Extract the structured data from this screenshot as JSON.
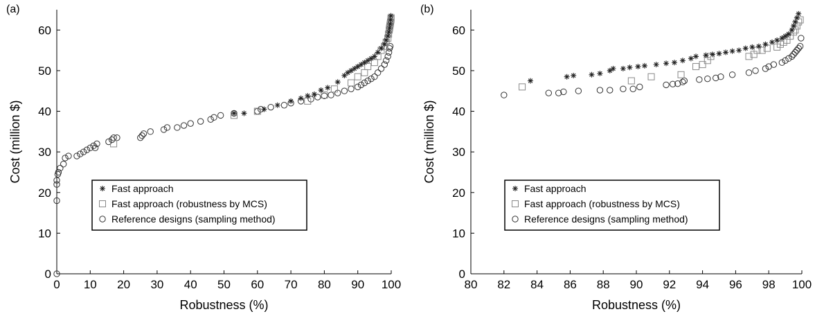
{
  "chart_data": [
    {
      "type": "scatter",
      "panel_label": "(a)",
      "xlabel": "Robustness (%)",
      "ylabel": "Cost (million $)",
      "xlim": [
        0,
        100
      ],
      "ylim": [
        0,
        65
      ],
      "xticks": [
        0,
        10,
        20,
        30,
        40,
        50,
        60,
        70,
        80,
        90,
        100
      ],
      "yticks": [
        0,
        10,
        20,
        30,
        40,
        50,
        60
      ],
      "legend_position": "lower-center-left",
      "series": [
        {
          "name": "Fast approach",
          "marker": "asterisk",
          "color": "#222222",
          "points": [
            [
              53,
              39.5
            ],
            [
              56,
              39.5
            ],
            [
              62,
              40.5
            ],
            [
              66,
              41.5
            ],
            [
              70,
              42.5
            ],
            [
              73,
              43.2
            ],
            [
              75,
              43.8
            ],
            [
              77,
              44.2
            ],
            [
              79,
              45.2
            ],
            [
              81,
              45.8
            ],
            [
              84,
              47.2
            ],
            [
              86,
              48.8
            ],
            [
              87,
              49.5
            ],
            [
              88,
              50
            ],
            [
              89,
              50.5
            ],
            [
              90,
              51
            ],
            [
              91,
              51.5
            ],
            [
              92,
              52
            ],
            [
              93,
              52.5
            ],
            [
              94,
              53
            ],
            [
              95,
              53.5
            ],
            [
              96,
              54.5
            ],
            [
              97,
              55.5
            ],
            [
              98,
              56.5
            ],
            [
              98.5,
              57.5
            ],
            [
              99,
              58.5
            ],
            [
              99.3,
              59.5
            ],
            [
              99.5,
              60.5
            ],
            [
              99.7,
              61.5
            ],
            [
              99.8,
              62.5
            ],
            [
              99.9,
              63.5
            ]
          ]
        },
        {
          "name": "Fast approach (robustness by MCS)",
          "marker": "square",
          "color": "#888888",
          "points": [
            [
              17,
              32
            ],
            [
              53,
              39
            ],
            [
              60,
              40
            ],
            [
              75,
              42.5
            ],
            [
              80,
              44
            ],
            [
              83,
              45.5
            ],
            [
              88,
              47
            ],
            [
              90,
              48.5
            ],
            [
              92,
              49.5
            ],
            [
              93,
              51
            ],
            [
              95,
              52
            ],
            [
              96,
              53.5
            ],
            [
              97,
              55
            ],
            [
              98,
              56
            ],
            [
              98.5,
              57
            ],
            [
              99,
              58
            ],
            [
              99.2,
              59
            ],
            [
              99.4,
              60
            ],
            [
              99.5,
              60.5
            ],
            [
              99.6,
              61
            ],
            [
              99.7,
              61.5
            ],
            [
              99.8,
              62
            ],
            [
              99.9,
              62.5
            ],
            [
              99.95,
              63
            ]
          ]
        },
        {
          "name": "Reference designs (sampling method)",
          "marker": "circle",
          "color": "#333333",
          "points": [
            [
              0,
              0
            ],
            [
              0,
              18
            ],
            [
              0,
              22
            ],
            [
              0,
              23
            ],
            [
              0.3,
              24.5
            ],
            [
              0.5,
              25
            ],
            [
              1,
              26
            ],
            [
              2,
              27
            ],
            [
              2.5,
              28.5
            ],
            [
              3.5,
              29
            ],
            [
              6,
              29
            ],
            [
              7,
              29.5
            ],
            [
              8,
              30
            ],
            [
              9,
              30.5
            ],
            [
              10,
              31
            ],
            [
              11,
              31.5
            ],
            [
              11.5,
              31
            ],
            [
              12,
              32
            ],
            [
              15.5,
              32.5
            ],
            [
              16.5,
              33
            ],
            [
              17,
              33.5
            ],
            [
              18,
              33.5
            ],
            [
              25,
              33.5
            ],
            [
              25.5,
              34
            ],
            [
              26,
              34.5
            ],
            [
              28,
              35
            ],
            [
              32,
              35.5
            ],
            [
              33,
              36
            ],
            [
              36,
              36
            ],
            [
              38,
              36.5
            ],
            [
              40,
              37
            ],
            [
              43,
              37.5
            ],
            [
              46,
              38
            ],
            [
              47,
              38.5
            ],
            [
              49,
              39
            ],
            [
              53,
              39.5
            ],
            [
              60,
              40
            ],
            [
              61,
              40.5
            ],
            [
              64,
              41
            ],
            [
              68,
              41.5
            ],
            [
              70,
              42
            ],
            [
              73,
              42.5
            ],
            [
              76,
              43
            ],
            [
              78,
              43.5
            ],
            [
              80,
              43.8
            ],
            [
              82,
              44
            ],
            [
              84,
              44.5
            ],
            [
              86,
              45
            ],
            [
              88,
              45.5
            ],
            [
              90,
              46
            ],
            [
              91,
              46.5
            ],
            [
              92,
              47
            ],
            [
              93,
              47.5
            ],
            [
              94,
              48
            ],
            [
              95,
              48.5
            ],
            [
              96,
              49.5
            ],
            [
              97,
              50.5
            ],
            [
              98,
              51.5
            ],
            [
              98.5,
              52.5
            ],
            [
              99,
              53.5
            ],
            [
              99.3,
              54.5
            ],
            [
              99.5,
              55.5
            ],
            [
              99.7,
              56
            ]
          ]
        }
      ]
    },
    {
      "type": "scatter",
      "panel_label": "(b)",
      "xlabel": "Robustness (%)",
      "ylabel": "Cost (million $)",
      "xlim": [
        80,
        100
      ],
      "ylim": [
        0,
        65
      ],
      "xticks": [
        80,
        82,
        84,
        86,
        88,
        90,
        92,
        94,
        96,
        98,
        100
      ],
      "yticks": [
        0,
        10,
        20,
        30,
        40,
        50,
        60
      ],
      "legend_position": "lower-center",
      "series": [
        {
          "name": "Fast approach",
          "marker": "asterisk",
          "color": "#222222",
          "points": [
            [
              83.6,
              47.5
            ],
            [
              85.8,
              48.5
            ],
            [
              86.2,
              48.8
            ],
            [
              87.3,
              49
            ],
            [
              87.8,
              49.3
            ],
            [
              88.4,
              50
            ],
            [
              88.6,
              50.5
            ],
            [
              89.2,
              50.5
            ],
            [
              89.6,
              50.8
            ],
            [
              90.1,
              51
            ],
            [
              90.5,
              51.2
            ],
            [
              91.2,
              51.5
            ],
            [
              91.8,
              51.8
            ],
            [
              92.3,
              52
            ],
            [
              92.8,
              52.5
            ],
            [
              93.3,
              53
            ],
            [
              93.6,
              53.5
            ],
            [
              94.2,
              53.8
            ],
            [
              94.6,
              54
            ],
            [
              95,
              54.2
            ],
            [
              95.4,
              54.5
            ],
            [
              95.8,
              54.8
            ],
            [
              96.2,
              55
            ],
            [
              96.6,
              55.5
            ],
            [
              97,
              55.8
            ],
            [
              97.4,
              56
            ],
            [
              97.8,
              56.5
            ],
            [
              98.2,
              57
            ],
            [
              98.5,
              57.5
            ],
            [
              98.8,
              58
            ],
            [
              99,
              58.5
            ],
            [
              99.2,
              59
            ],
            [
              99.4,
              60
            ],
            [
              99.5,
              61
            ],
            [
              99.6,
              62
            ],
            [
              99.7,
              63
            ],
            [
              99.8,
              64
            ]
          ]
        },
        {
          "name": "Fast approach (robustness by MCS)",
          "marker": "square",
          "color": "#888888",
          "points": [
            [
              83.1,
              46
            ],
            [
              89.7,
              47.5
            ],
            [
              90.9,
              48.5
            ],
            [
              92.7,
              49
            ],
            [
              93.6,
              51
            ],
            [
              94,
              51.5
            ],
            [
              94.3,
              52.5
            ],
            [
              94.5,
              53.5
            ],
            [
              96.8,
              53.5
            ],
            [
              97.1,
              54
            ],
            [
              97.3,
              55
            ],
            [
              97.6,
              55
            ],
            [
              97.9,
              55.5
            ],
            [
              98.5,
              55.8
            ],
            [
              98.7,
              56.5
            ],
            [
              98.9,
              57
            ],
            [
              99.1,
              57.5
            ],
            [
              99.3,
              58.5
            ],
            [
              99.5,
              59.5
            ],
            [
              99.6,
              60
            ],
            [
              99.7,
              61
            ],
            [
              99.8,
              62
            ],
            [
              99.9,
              62.5
            ]
          ]
        },
        {
          "name": "Reference designs (sampling method)",
          "marker": "circle",
          "color": "#333333",
          "points": [
            [
              82,
              44
            ],
            [
              84.7,
              44.5
            ],
            [
              85.3,
              44.5
            ],
            [
              85.6,
              44.8
            ],
            [
              86.5,
              45
            ],
            [
              87.8,
              45.2
            ],
            [
              88.4,
              45.2
            ],
            [
              89.2,
              45.5
            ],
            [
              89.8,
              45.5
            ],
            [
              90.2,
              46
            ],
            [
              91.8,
              46.5
            ],
            [
              92.2,
              46.7
            ],
            [
              92.5,
              46.8
            ],
            [
              92.8,
              47.2
            ],
            [
              92.9,
              47.5
            ],
            [
              93.8,
              47.8
            ],
            [
              94.3,
              48
            ],
            [
              94.8,
              48.2
            ],
            [
              95.1,
              48.5
            ],
            [
              95.8,
              49
            ],
            [
              96.8,
              49.5
            ],
            [
              97.2,
              50
            ],
            [
              97.8,
              50.5
            ],
            [
              98,
              51
            ],
            [
              98.3,
              51.5
            ],
            [
              98.8,
              52
            ],
            [
              99,
              52.5
            ],
            [
              99.2,
              53
            ],
            [
              99.4,
              53.5
            ],
            [
              99.5,
              54
            ],
            [
              99.6,
              54.5
            ],
            [
              99.7,
              55
            ],
            [
              99.8,
              55.5
            ],
            [
              99.9,
              56
            ],
            [
              99.95,
              58
            ]
          ]
        }
      ]
    }
  ]
}
